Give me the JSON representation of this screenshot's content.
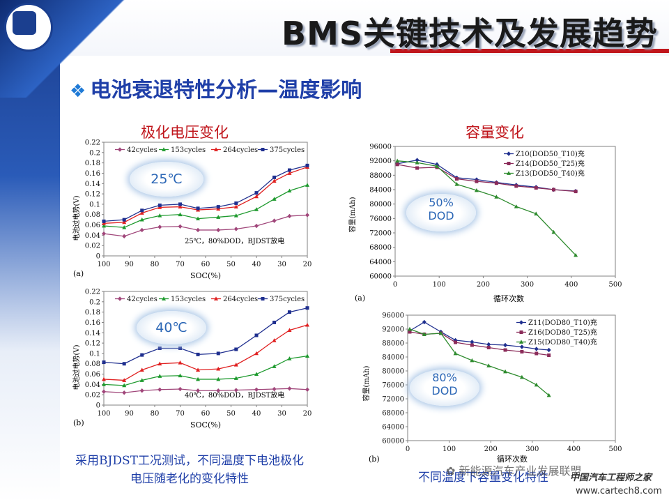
{
  "header": {
    "title": "BMS关键技术及发展趋势"
  },
  "section": {
    "title": "电池衰退特性分析—温度影响"
  },
  "left_heading": "极化电压变化",
  "right_heading": "容量变化",
  "panels": {
    "tl": {
      "badge": "25℃",
      "label": "(a)",
      "note": "25℃，80%DOD，BJDST放电",
      "ylabel": "电池过电势(V)",
      "xlabel": "SOC(%)"
    },
    "bl": {
      "badge": "40℃",
      "label": "(b)",
      "note": "40℃，80%DOD，BJDST放电",
      "ylabel": "电池过电势(V)",
      "xlabel": "SOC(%)"
    },
    "tr": {
      "badge_line1": "50%",
      "badge_line2": "DOD",
      "label": "(a)",
      "ylabel": "容量(mAh)",
      "xlabel": "循环次数"
    },
    "br": {
      "badge_line1": "80%",
      "badge_line2": "DOD",
      "label": "(b)",
      "ylabel": "容量(mAh)",
      "xlabel": "循环次数"
    }
  },
  "captions": {
    "left": [
      "采用BJDST工况测试，不同温度下电池极化",
      "电压随老化的变化特性"
    ],
    "right": "不同温度下容量变化特性"
  },
  "watermark": {
    "channel": "新能源汽车产业发展联盟",
    "site": "www.cartech8.com",
    "brand": "中国汽车工程师之家"
  },
  "colors": {
    "c42": "#a0467a",
    "c153": "#1e9a2e",
    "c264": "#e02020",
    "c375": "#1f2f8f",
    "t10": "#1f2f8f",
    "t25": "#8b2c5a",
    "t40": "#2e8b2e"
  },
  "chart_data": [
    {
      "type": "line",
      "id": "tl",
      "xlabel": "SOC(%)",
      "ylabel": "电池过电势(V)",
      "xlim": [
        100,
        20
      ],
      "ylim": [
        0,
        0.22
      ],
      "xticks": [
        100,
        90,
        80,
        70,
        60,
        50,
        40,
        30,
        20
      ],
      "yticks": [
        0,
        0.02,
        0.04,
        0.06,
        0.08,
        0.1,
        0.12,
        0.14,
        0.16,
        0.18,
        0.2,
        0.22
      ],
      "x": [
        100,
        92,
        85,
        78,
        70,
        63,
        55,
        48,
        40,
        33,
        27,
        20
      ],
      "series": [
        {
          "name": "42cycles",
          "color": "#a0467a",
          "marker": "diamond",
          "values": [
            0.043,
            0.038,
            0.05,
            0.056,
            0.057,
            0.05,
            0.05,
            0.052,
            0.058,
            0.068,
            0.077,
            0.079
          ]
        },
        {
          "name": "153cycles",
          "color": "#1e9a2e",
          "marker": "triangle",
          "values": [
            0.058,
            0.055,
            0.07,
            0.078,
            0.08,
            0.072,
            0.075,
            0.078,
            0.09,
            0.11,
            0.126,
            0.137
          ]
        },
        {
          "name": "264cycles",
          "color": "#e02020",
          "marker": "triangle",
          "values": [
            0.063,
            0.065,
            0.083,
            0.094,
            0.095,
            0.089,
            0.091,
            0.095,
            0.115,
            0.145,
            0.16,
            0.172
          ]
        },
        {
          "name": "375cycles",
          "color": "#1f2f8f",
          "marker": "square",
          "values": [
            0.067,
            0.07,
            0.088,
            0.098,
            0.1,
            0.092,
            0.095,
            0.102,
            0.122,
            0.152,
            0.166,
            0.175
          ]
        }
      ]
    },
    {
      "type": "line",
      "id": "bl",
      "xlabel": "SOC(%)",
      "ylabel": "电池过电势(V)",
      "xlim": [
        100,
        20
      ],
      "ylim": [
        0,
        0.22
      ],
      "xticks": [
        100,
        90,
        80,
        70,
        60,
        50,
        40,
        30,
        20
      ],
      "yticks": [
        0,
        0.02,
        0.04,
        0.06,
        0.08,
        0.1,
        0.12,
        0.14,
        0.16,
        0.18,
        0.2,
        0.22
      ],
      "x": [
        100,
        92,
        85,
        78,
        70,
        63,
        55,
        48,
        40,
        33,
        27,
        20
      ],
      "series": [
        {
          "name": "42cycles",
          "color": "#a0467a",
          "marker": "diamond",
          "values": [
            0.026,
            0.024,
            0.028,
            0.03,
            0.031,
            0.028,
            0.028,
            0.029,
            0.03,
            0.031,
            0.032,
            0.03
          ]
        },
        {
          "name": "153cycles",
          "color": "#1e9a2e",
          "marker": "triangle",
          "values": [
            0.04,
            0.038,
            0.048,
            0.056,
            0.057,
            0.05,
            0.05,
            0.052,
            0.06,
            0.075,
            0.09,
            0.095
          ]
        },
        {
          "name": "264cycles",
          "color": "#e02020",
          "marker": "triangle",
          "values": [
            0.05,
            0.048,
            0.068,
            0.08,
            0.082,
            0.068,
            0.07,
            0.078,
            0.1,
            0.125,
            0.145,
            0.155
          ]
        },
        {
          "name": "375cycles",
          "color": "#1f2f8f",
          "marker": "square",
          "values": [
            0.083,
            0.08,
            0.097,
            0.11,
            0.11,
            0.098,
            0.1,
            0.108,
            0.135,
            0.16,
            0.18,
            0.188
          ]
        }
      ]
    },
    {
      "type": "line",
      "id": "tr",
      "xlabel": "循环次数",
      "ylabel": "容量(mAh)",
      "xlim": [
        0,
        500
      ],
      "ylim": [
        60000,
        96000
      ],
      "xticks": [
        0,
        100,
        200,
        300,
        400,
        500
      ],
      "yticks": [
        60000,
        64000,
        68000,
        72000,
        76000,
        80000,
        84000,
        88000,
        92000,
        96000
      ],
      "series": [
        {
          "name": "Z10(DOD50_T10)充",
          "color": "#1f2f8f",
          "marker": "diamond",
          "x": [
            5,
            50,
            95,
            140,
            185,
            230,
            275,
            320,
            360,
            410
          ],
          "values": [
            91200,
            92200,
            91000,
            87300,
            86800,
            86000,
            85300,
            84700,
            84000,
            83600
          ]
        },
        {
          "name": "Z14(DOD50_T25)充",
          "color": "#8b2c5a",
          "marker": "square",
          "x": [
            5,
            50,
            95,
            140,
            185,
            230,
            275,
            320,
            360,
            410
          ],
          "values": [
            91000,
            90000,
            90200,
            87000,
            86300,
            85800,
            85000,
            84500,
            84000,
            83500
          ]
        },
        {
          "name": "Z13(DOD50_T40)充",
          "color": "#2e8b2e",
          "marker": "triangle",
          "x": [
            5,
            50,
            95,
            140,
            185,
            230,
            275,
            320,
            360,
            410
          ],
          "values": [
            92000,
            91500,
            90500,
            85500,
            83800,
            82000,
            79300,
            77300,
            72200,
            65800
          ]
        }
      ]
    },
    {
      "type": "line",
      "id": "br",
      "xlabel": "循环次数",
      "ylabel": "容量(mAh)",
      "xlim": [
        0,
        500
      ],
      "ylim": [
        60000,
        96000
      ],
      "xticks": [
        0,
        100,
        200,
        300,
        400,
        500
      ],
      "yticks": [
        60000,
        64000,
        68000,
        72000,
        76000,
        80000,
        84000,
        88000,
        92000,
        96000
      ],
      "series": [
        {
          "name": "Z11(DOD80_T10)充",
          "color": "#1f2f8f",
          "marker": "diamond",
          "x": [
            5,
            40,
            80,
            115,
            155,
            195,
            235,
            275,
            310,
            340
          ],
          "values": [
            91500,
            94000,
            91200,
            88800,
            88300,
            87600,
            87400,
            86900,
            86300,
            86000
          ]
        },
        {
          "name": "Z16(DOD80_T25)充",
          "color": "#8b2c5a",
          "marker": "square",
          "x": [
            5,
            40,
            80,
            115,
            155,
            195,
            235,
            275,
            310,
            340
          ],
          "values": [
            91200,
            90500,
            90800,
            88200,
            87400,
            86700,
            86000,
            85500,
            85000,
            84500
          ]
        },
        {
          "name": "Z15(DOD80_T40)充",
          "color": "#2e8b2e",
          "marker": "triangle",
          "x": [
            5,
            40,
            80,
            115,
            155,
            195,
            235,
            275,
            310,
            340
          ],
          "values": [
            92000,
            90500,
            90800,
            85000,
            83000,
            81500,
            79800,
            78200,
            76000,
            73000
          ]
        }
      ]
    }
  ]
}
